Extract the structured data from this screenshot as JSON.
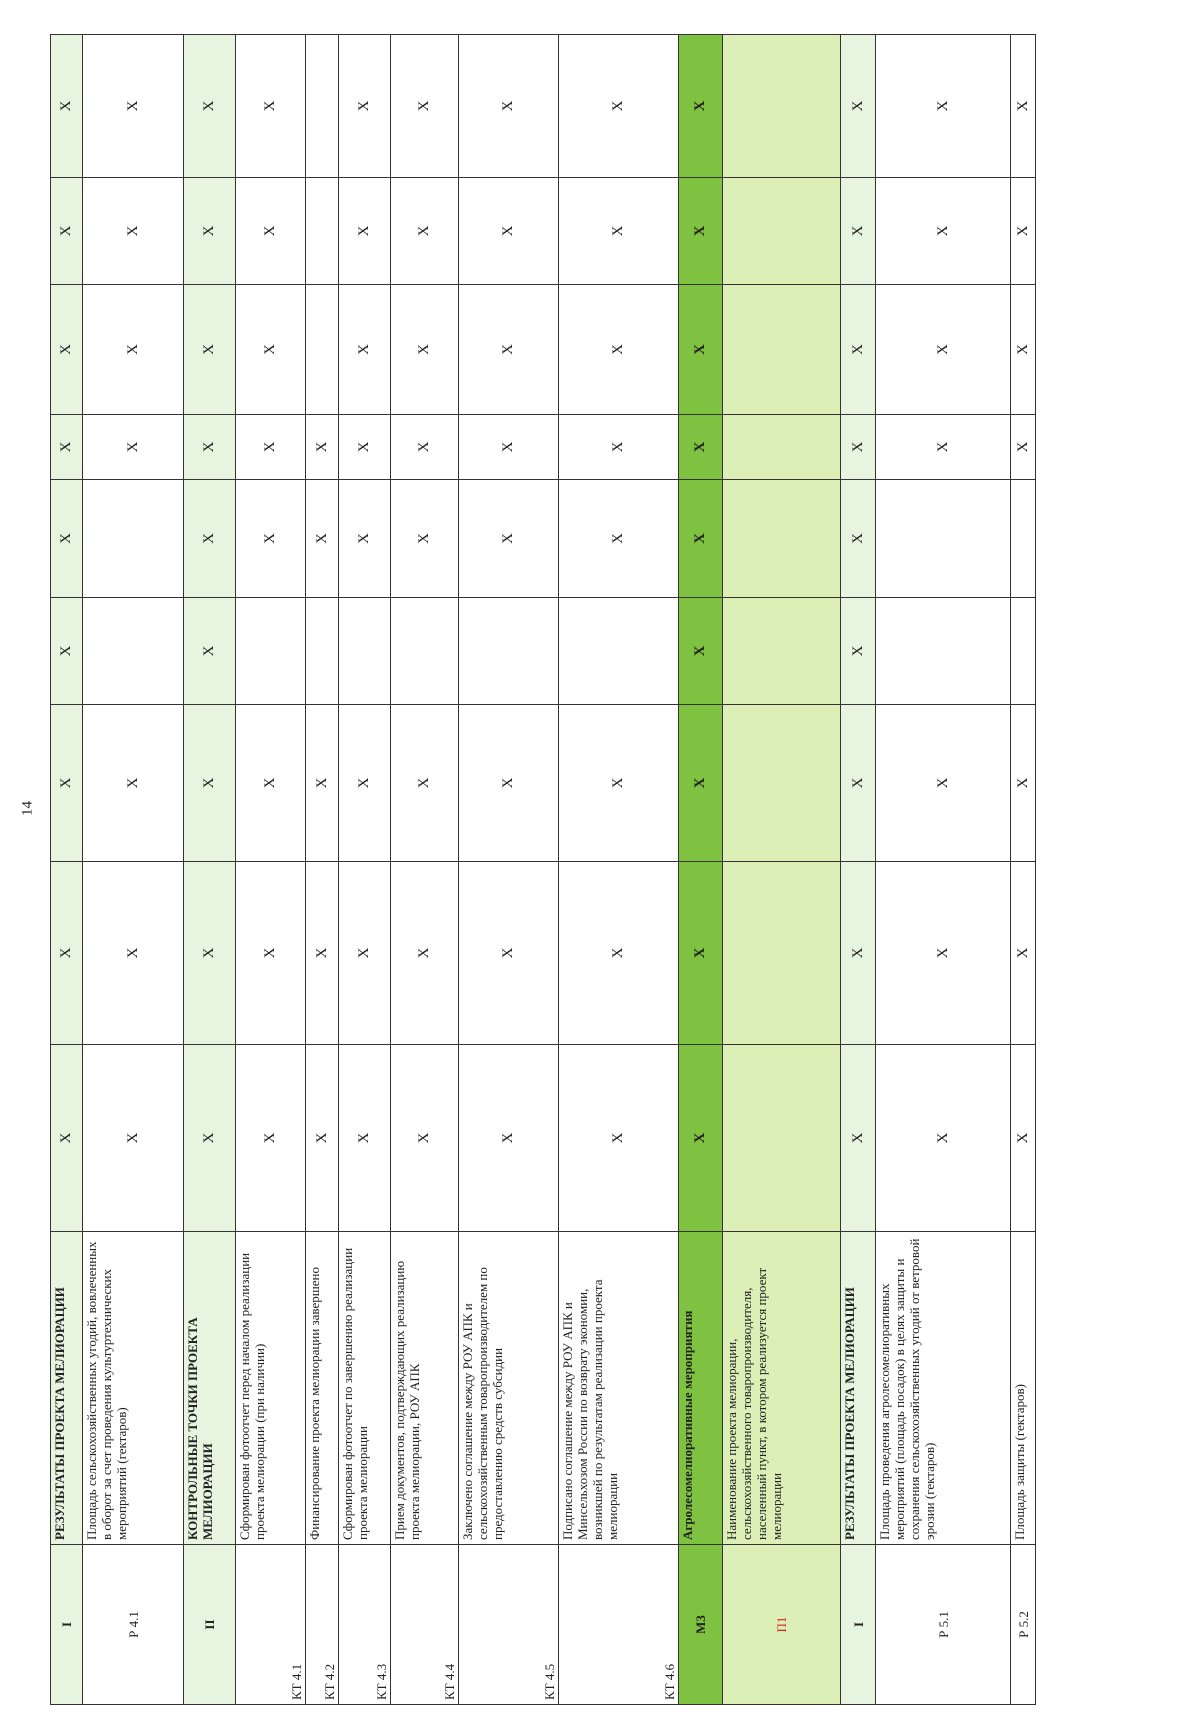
{
  "page_number": "14",
  "table": {
    "rows": [
      {
        "code": "I",
        "name": "РЕЗУЛЬТАТЫ ПРОЕКТА МЕЛИОРАЦИИ",
        "cells": [
          "X",
          "X",
          "X",
          "X",
          "X",
          "X",
          "X",
          "X",
          "X"
        ]
      },
      {
        "code": "Р 4.1",
        "name": "Площадь сельскохозяйственных угодий, вовлеченных в оборот за счет проведения культуртехнических мероприятий (гектаров)",
        "cells": [
          "X",
          "X",
          "X",
          null,
          null,
          "X",
          "X",
          "X",
          "X"
        ]
      },
      {
        "code": "II",
        "name": "КОНТРОЛЬНЫЕ ТОЧКИ ПРОЕКТА МЕЛИОРАЦИИ",
        "cells": [
          "X",
          "X",
          "X",
          "X",
          "X",
          "X",
          "X",
          "X",
          "X"
        ]
      },
      {
        "code": "КТ 4.1",
        "name": "Сформирован фотоотчет перед началом реализации проекта мелиорации (при наличии)",
        "cells": [
          "X",
          "X",
          "X",
          null,
          "X",
          "X",
          "X",
          "X",
          "X"
        ]
      },
      {
        "code": "КТ 4.2",
        "name": "Финансирование проекта мелиорации завершено",
        "cells": [
          "X",
          "X",
          "X",
          null,
          "X",
          "X",
          null,
          null,
          null
        ]
      },
      {
        "code": "КТ 4.3",
        "name": "Сформирован фотоотчет по завершению реализации проекта мелиорации",
        "cells": [
          "X",
          "X",
          "X",
          null,
          "X",
          "X",
          "X",
          "X",
          "X"
        ]
      },
      {
        "code": "КТ 4.4",
        "name": "Прием документов, подтверждающих реализацию проекта мелиорации, РОУ АПК",
        "cells": [
          "X",
          "X",
          "X",
          null,
          "X",
          "X",
          "X",
          "X",
          "X"
        ]
      },
      {
        "code": "КТ 4.5",
        "name": "Заключено соглашение между РОУ АПК и сельскохозяйственным товаропроизводителем по предоставлению средств субсидии",
        "cells": [
          "X",
          "X",
          "X",
          null,
          "X",
          "X",
          "X",
          "X",
          "X"
        ]
      },
      {
        "code": "КТ 4.6",
        "name": "Подписано соглашение между РОУ АПК и Минсельхозом России по возврату экономии, возникшей по результатам реализации проекта мелиорации",
        "cells": [
          "X",
          "X",
          "X",
          null,
          "X",
          "X",
          "X",
          "X",
          "X"
        ]
      },
      {
        "code": "М3",
        "name": "Агролесомелиоративные мероприятия",
        "cells": [
          "X",
          "X",
          "X",
          "X",
          "X",
          "X",
          "X",
          "X",
          "X"
        ]
      },
      {
        "code": "П1",
        "name": "Наименование проекта мелиорации, сельскохозяйственного товаропроизводителя, населенный пункт, в котором реализуется проект мелиорации",
        "cells": [
          null,
          null,
          null,
          null,
          null,
          null,
          null,
          null,
          null
        ]
      },
      {
        "code": "I",
        "name": "РЕЗУЛЬТАТЫ ПРОЕКТА МЕЛИОРАЦИИ",
        "cells": [
          "X",
          "X",
          "X",
          "X",
          "X",
          "X",
          "X",
          "X",
          "X"
        ]
      },
      {
        "code": "Р 5.1",
        "name": "Площадь проведения агролесомелиоративных мероприятий (площадь посадок) в целях защиты и сохранения сельскохозяйственных угодий от ветровой эрозии (гектаров)",
        "cells": [
          "X",
          "X",
          "X",
          null,
          null,
          "X",
          "X",
          "X",
          "X"
        ]
      },
      {
        "code": "Р 5.2",
        "name": "Площадь защиты (гектаров)",
        "cells": [
          "X",
          "X",
          "X",
          null,
          null,
          "X",
          "X",
          "X",
          "X"
        ]
      }
    ]
  }
}
